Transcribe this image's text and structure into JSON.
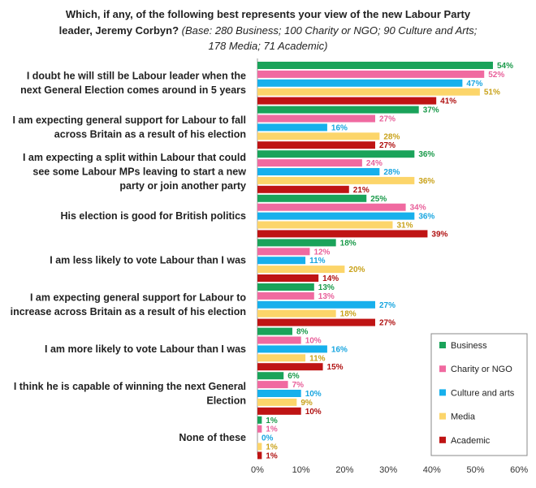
{
  "chart_data": {
    "type": "bar",
    "orientation": "horizontal",
    "title": {
      "line1": "Which, if any, of the following best represents your view of the new Labour Party",
      "line2_bold": "leader, Jeremy Corbyn?",
      "line2_italic": "(Base: 280 Business; 100 Charity or NGO; 90 Culture and Arts;",
      "line3_italic": "178 Media; 71 Academic)"
    },
    "categories": [
      [
        "I doubt he will still be Labour leader when the",
        "next General Election comes around in 5 years"
      ],
      [
        "I am expecting general support for Labour to fall",
        "across Britain as a result of his election"
      ],
      [
        "I am expecting a split within Labour that could",
        "see some Labour MPs leaving to start a new",
        "party or join another party"
      ],
      [
        "His election is good for British politics"
      ],
      [
        "I am less likely to vote Labour than I was"
      ],
      [
        "I am expecting general support for Labour to",
        "increase across Britain as a result of his election"
      ],
      [
        "I am more likely to vote Labour than I was"
      ],
      [
        "I think he is capable of winning the next General",
        "Election"
      ],
      [
        "None of these"
      ]
    ],
    "series": [
      {
        "name": "Business",
        "color": "#1aa35a",
        "label_color": "#1a9a4a",
        "values": [
          54,
          37,
          36,
          25,
          18,
          13,
          8,
          6,
          1
        ]
      },
      {
        "name": "Charity or NGO",
        "color": "#f06aa0",
        "label_color": "#e8609a",
        "values": [
          52,
          27,
          24,
          34,
          12,
          13,
          10,
          7,
          1
        ]
      },
      {
        "name": "Culture and arts",
        "color": "#17b0ec",
        "label_color": "#19a6e0",
        "values": [
          47,
          16,
          28,
          36,
          11,
          27,
          16,
          10,
          0
        ]
      },
      {
        "name": "Media",
        "color": "#fcd56a",
        "label_color": "#c9a21a",
        "values": [
          51,
          28,
          36,
          31,
          20,
          18,
          11,
          9,
          1
        ]
      },
      {
        "name": "Academic",
        "color": "#bf1414",
        "label_color": "#b01010",
        "values": [
          41,
          27,
          21,
          39,
          14,
          27,
          15,
          10,
          1
        ]
      }
    ],
    "value_suffix": "%",
    "xlim": [
      0,
      60
    ],
    "xticks": [
      "0%",
      "10%",
      "20%",
      "30%",
      "40%",
      "50%",
      "60%"
    ],
    "grid": false,
    "legend_position": "bottom-right"
  }
}
